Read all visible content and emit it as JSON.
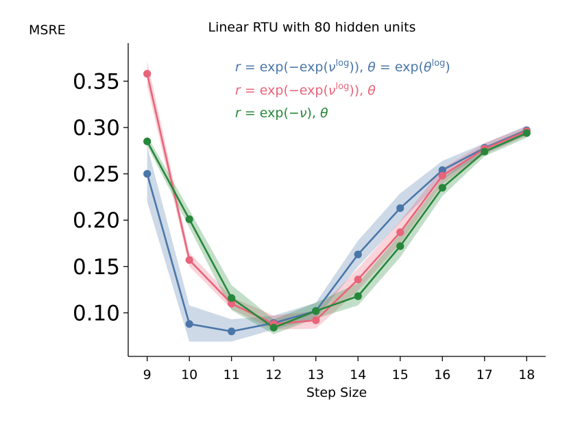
{
  "chart_data": {
    "type": "line",
    "title": "Linear RTU with 80 hidden units",
    "xlabel": "Step Size",
    "ylabel": "MSRE",
    "categories": [
      "9",
      "10",
      "11",
      "12",
      "13",
      "14",
      "15",
      "16",
      "17",
      "18"
    ],
    "x": [
      9,
      10,
      11,
      12,
      13,
      14,
      15,
      16,
      17,
      18
    ],
    "xlim": [
      8.55,
      18.45
    ],
    "ylim": [
      0.053,
      0.391
    ],
    "yticks": [
      0.1,
      0.15,
      0.2,
      0.25,
      0.3,
      0.35
    ],
    "ytick_labels": [
      "0.10",
      "0.15",
      "0.20",
      "0.25",
      "0.30",
      "0.35"
    ],
    "legend_position": "top-right",
    "series": [
      {
        "name": "r = exp(−exp(ν^log)), θ = exp(θ^log)",
        "legend": {
          "a": "r",
          "b": " = exp(−exp(",
          "c": "ν",
          "d": "log",
          "e": ")), ",
          "f": "θ",
          "g": " = exp(",
          "h": "θ",
          "i": "log",
          "j": ")"
        },
        "color": "#4a76a8",
        "values": [
          0.25,
          0.088,
          0.08,
          0.089,
          0.102,
          0.163,
          0.213,
          0.254,
          0.278,
          0.297
        ],
        "lower": [
          0.22,
          0.069,
          0.069,
          0.082,
          0.094,
          0.15,
          0.198,
          0.244,
          0.272,
          0.292
        ],
        "upper": [
          0.28,
          0.108,
          0.093,
          0.097,
          0.111,
          0.178,
          0.229,
          0.264,
          0.283,
          0.302
        ]
      },
      {
        "name": "r = exp(−exp(ν^log)), θ",
        "legend": {
          "a": "r",
          "b": " = exp(−exp(",
          "c": "ν",
          "d": "log",
          "e": ")), ",
          "f": "θ"
        },
        "color": "#e8647a",
        "values": [
          0.358,
          0.157,
          0.11,
          0.088,
          0.092,
          0.136,
          0.187,
          0.248,
          0.277,
          0.296
        ],
        "lower": [
          0.345,
          0.15,
          0.104,
          0.082,
          0.083,
          0.124,
          0.175,
          0.239,
          0.271,
          0.291
        ],
        "upper": [
          0.372,
          0.165,
          0.117,
          0.097,
          0.102,
          0.148,
          0.199,
          0.256,
          0.283,
          0.301
        ]
      },
      {
        "name": "r = exp(−ν), θ",
        "legend": {
          "a": "r",
          "b": " = exp(−",
          "c": "ν",
          "e": "), ",
          "f": "θ"
        },
        "color": "#27873a",
        "values": [
          0.285,
          0.201,
          0.116,
          0.084,
          0.102,
          0.118,
          0.172,
          0.235,
          0.274,
          0.294
        ],
        "lower": [
          0.28,
          0.192,
          0.103,
          0.077,
          0.094,
          0.108,
          0.16,
          0.226,
          0.269,
          0.289
        ],
        "upper": [
          0.291,
          0.211,
          0.13,
          0.093,
          0.111,
          0.132,
          0.185,
          0.245,
          0.279,
          0.299
        ]
      }
    ]
  }
}
